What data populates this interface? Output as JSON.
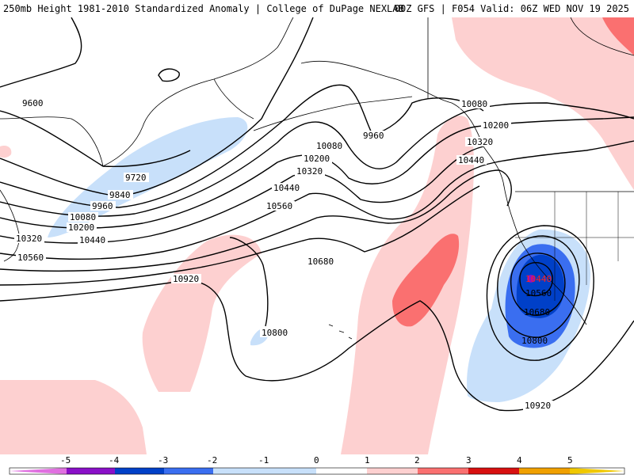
{
  "header": {
    "left_title": "250mb Height 1981-2010 Standardized Anomaly | College of DuPage NEXLAB",
    "right_title": "00Z GFS | F054 Valid: 06Z WED NOV 19 2025"
  },
  "colors": {
    "neg5": "#e070e0",
    "neg4": "#8a10c8",
    "neg3": "#0040c8",
    "neg2": "#3a6ef0",
    "neg1": "#c8e0fa",
    "pos1": "#fdd0d0",
    "pos2": "#fa7070",
    "pos3": "#d81010",
    "pos4": "#f0a000",
    "pos5": "#f0c800",
    "contour": "#000000"
  },
  "map": {
    "contour_labels": [
      "9600",
      "9720",
      "9840",
      "9960",
      "10080",
      "10200",
      "10320",
      "10440",
      "10560",
      "10680",
      "10800",
      "10920"
    ],
    "low_center_label": "10440"
  },
  "legend": {
    "ticks": [
      "-5",
      "-4",
      "-3",
      "-2",
      "-1",
      "0",
      "1",
      "2",
      "3",
      "4",
      "5"
    ]
  }
}
